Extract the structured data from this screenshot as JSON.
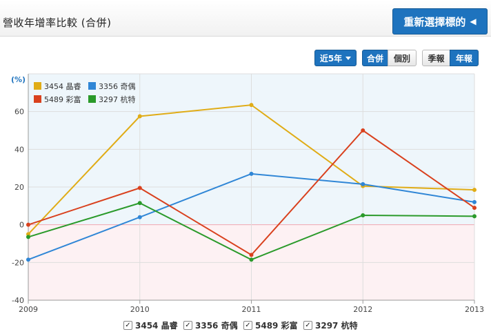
{
  "header": {
    "title": "營收年增率比較 (合併)",
    "reselect_label": "重新選擇標的",
    "reselect_icon": "triangle-left-icon"
  },
  "controls": {
    "period_label": "近5年",
    "consolidated_label": "合併",
    "individual_label": "個別",
    "quarterly_label": "季報",
    "annual_label": "年報",
    "active": [
      "合併",
      "年報"
    ]
  },
  "colors": {
    "accent": "#1e73be",
    "positive_bg": "#eef6fb",
    "negative_bg": "#fdf1f3",
    "zero_line": "#f0a6b0"
  },
  "chart_data": {
    "type": "line",
    "ylabel": "(%)",
    "x": [
      "2009",
      "2010",
      "2011",
      "2012",
      "2013"
    ],
    "ylim": [
      -40,
      80
    ],
    "yticks": [
      -40,
      -20,
      0,
      20,
      40,
      60
    ],
    "grid": true,
    "legend_position": "top-left",
    "series": [
      {
        "name": "3454 晶睿",
        "color": "#e0ac16",
        "values": [
          -5,
          57.5,
          63.5,
          20.5,
          18.5
        ]
      },
      {
        "name": "3356 奇偶",
        "color": "#2f86d6",
        "values": [
          -18.5,
          4,
          27,
          21.5,
          12
        ]
      },
      {
        "name": "5489 彩富",
        "color": "#d9411e",
        "values": [
          0,
          19.5,
          -16,
          50,
          9
        ]
      },
      {
        "name": "3297 杭特",
        "color": "#2a9a2a",
        "values": [
          -6.5,
          11.5,
          -18.5,
          5,
          4.5
        ]
      }
    ]
  },
  "bottom_legend": [
    {
      "label": "3454 晶睿",
      "checked": true
    },
    {
      "label": "3356 奇偶",
      "checked": true
    },
    {
      "label": "5489 彩富",
      "checked": true
    },
    {
      "label": "3297 杭特",
      "checked": true
    }
  ]
}
